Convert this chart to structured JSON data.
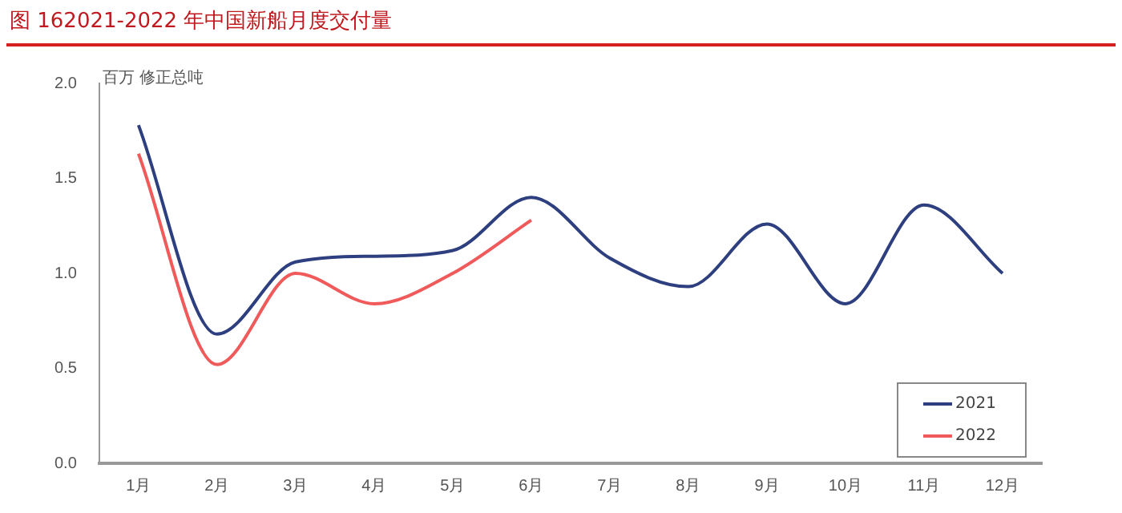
{
  "chart_data": {
    "type": "line",
    "title": "图 162021-2022 年中国新船月度交付量",
    "ylabel": "百万 修正总吨",
    "categories": [
      "1月",
      "2月",
      "3月",
      "4月",
      "5月",
      "6月",
      "7月",
      "8月",
      "9月",
      "10月",
      "11月",
      "12月"
    ],
    "series": [
      {
        "name": "2021",
        "color": "#2e3f80",
        "values": [
          1.78,
          0.68,
          1.06,
          1.09,
          1.12,
          1.4,
          1.08,
          0.93,
          1.26,
          0.84,
          1.36,
          1.0
        ]
      },
      {
        "name": "2022",
        "color": "#f05a5a",
        "values": [
          1.63,
          0.52,
          1.0,
          0.84,
          1.0,
          1.28,
          null,
          null,
          null,
          null,
          null,
          null
        ]
      }
    ],
    "ylim": [
      0,
      2
    ],
    "yticks": [
      {
        "value": 0,
        "label": "0.0"
      },
      {
        "value": 0.5,
        "label": "0.5"
      },
      {
        "value": 1,
        "label": "1.0"
      },
      {
        "value": 1.5,
        "label": "1.5"
      },
      {
        "value": 2,
        "label": "2.0"
      }
    ],
    "grid": false,
    "legend": "bottom right",
    "marker": "none",
    "line_style": "solid"
  }
}
